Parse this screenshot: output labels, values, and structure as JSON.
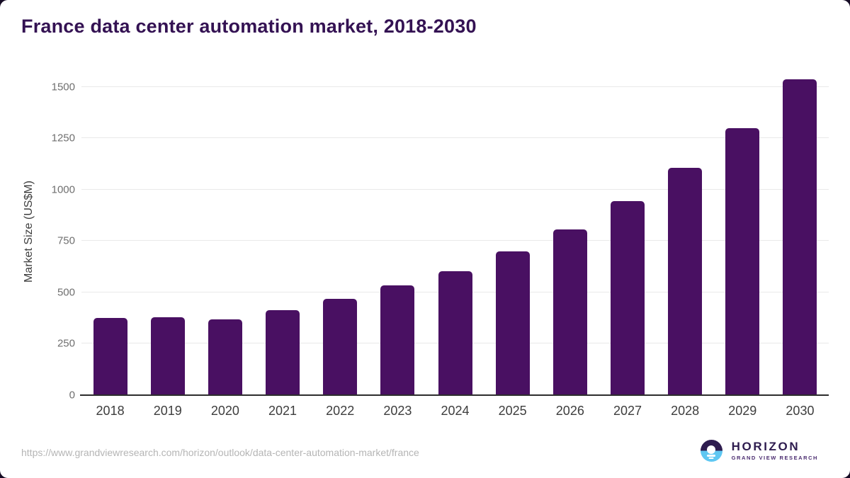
{
  "header": {
    "title": "France data center automation market, 2018-2030"
  },
  "chart_data": {
    "type": "bar",
    "title": "France data center automation market, 2018-2030",
    "xlabel": "",
    "ylabel": "Market Size (US$M)",
    "categories": [
      "2018",
      "2019",
      "2020",
      "2021",
      "2022",
      "2023",
      "2024",
      "2025",
      "2026",
      "2027",
      "2028",
      "2029",
      "2030"
    ],
    "values": [
      376,
      378,
      368,
      412,
      468,
      534,
      602,
      699,
      806,
      943,
      1106,
      1298,
      1536
    ],
    "yticks": [
      0,
      250,
      500,
      750,
      1000,
      1250,
      1500
    ],
    "ylim": [
      0,
      1595
    ],
    "grid": true,
    "legend": false,
    "bar_color": "#491062"
  },
  "footer": {
    "source_url": "https://www.grandviewresearch.com/horizon/outlook/data-center-automation-market/france",
    "logo": {
      "brand": "HORIZON",
      "subtitle": "GRAND VIEW RESEARCH"
    }
  },
  "colors": {
    "title_text": "#341253",
    "bar": "#491062",
    "gridline": "#e9e9e9",
    "axis_line": "#2d2d2d",
    "tick_label": "#6f6f6f",
    "x_label": "#3d3d3d",
    "url_text": "#b5b5b5",
    "logo_purple": "#2e1c4f",
    "logo_blue": "#5ec7f2",
    "page_corner": "#150b24"
  }
}
